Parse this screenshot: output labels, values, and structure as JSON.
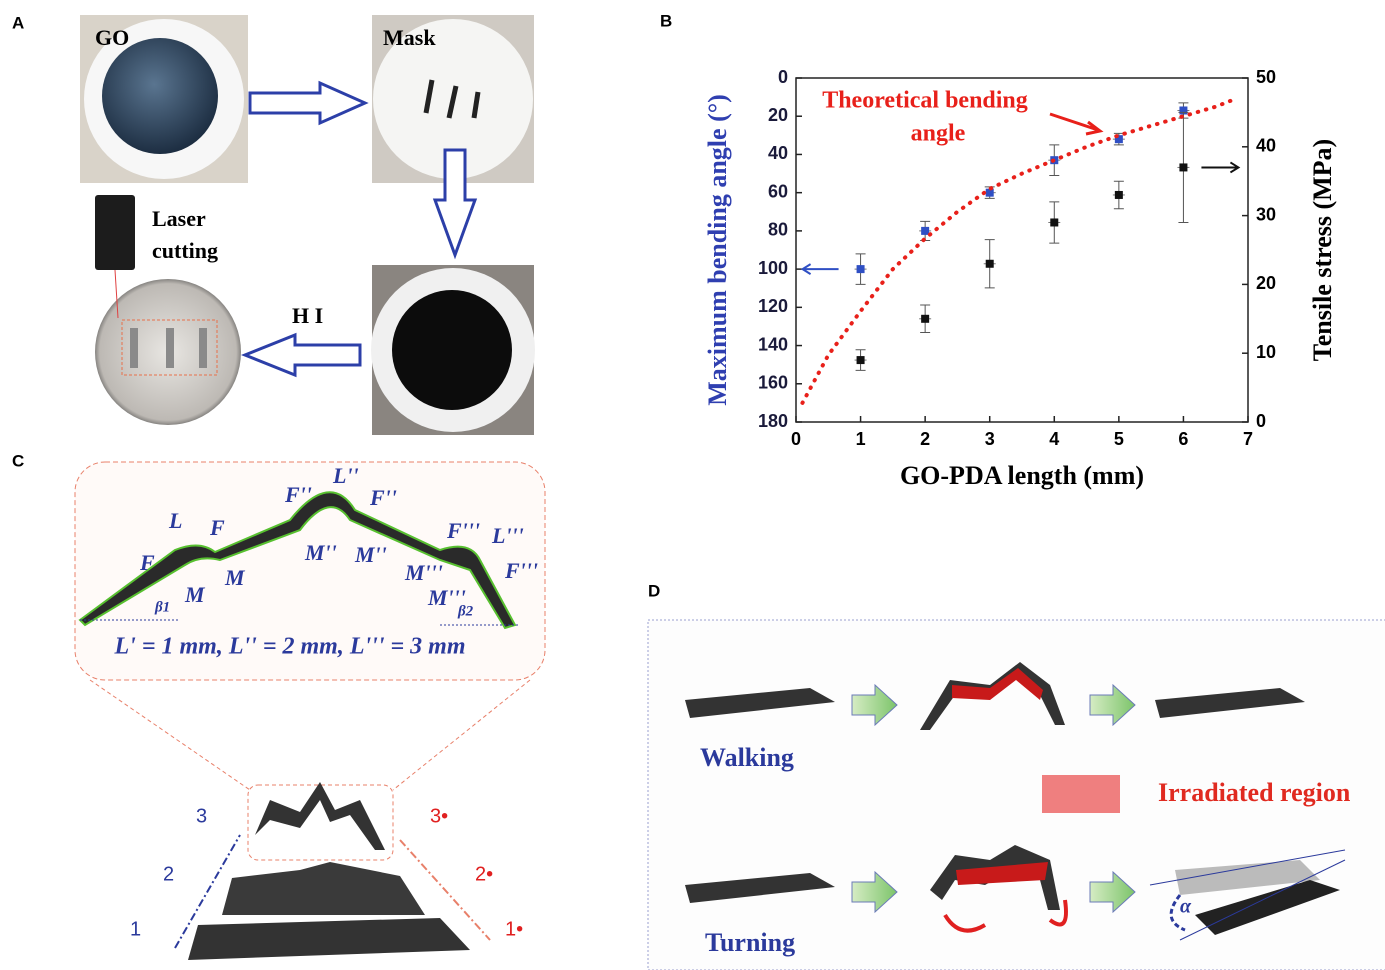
{
  "panels": {
    "a": {
      "letter": "A",
      "go": "GO",
      "mask": "Mask",
      "laser": [
        "Laser",
        "cutting"
      ],
      "hi": "H I"
    },
    "b": {
      "letter": "B"
    },
    "c": {
      "letter": "C",
      "labels": [
        "L",
        "F",
        "F",
        "M",
        "M",
        "F''",
        "L''",
        "F''",
        "M''",
        "M''",
        "F'''",
        "L'''",
        "M'''",
        "M'''",
        "F'''",
        "β1",
        "β2"
      ],
      "lengths": "L' = 1 mm,  L'' = 2 mm,  L''' = 3 mm",
      "steps": [
        "1",
        "2",
        "3"
      ],
      "steps_red": [
        "1•",
        "2•",
        "3•"
      ]
    },
    "d": {
      "letter": "D",
      "walking": "Walking",
      "turning": "Turning",
      "legend": "Irradiated region",
      "alpha": "α"
    }
  },
  "chart_data": {
    "type": "scatter",
    "x_label": "GO-PDA length (mm)",
    "y_label": "Maximum bending angle (°)",
    "y2_label": "Tensile stress (MPa)",
    "annotation": [
      "Theoretical bending",
      "angle"
    ],
    "xlim": [
      0,
      7
    ],
    "xticks": [
      0,
      1,
      2,
      3,
      4,
      5,
      6,
      7
    ],
    "ylim": [
      180,
      0
    ],
    "yticks": [
      0,
      20,
      40,
      60,
      80,
      100,
      120,
      140,
      160,
      180
    ],
    "y2lim": [
      0,
      50
    ],
    "y2ticks": [
      0,
      10,
      20,
      30,
      40,
      50
    ],
    "series": [
      {
        "color": "#2f4fc4",
        "x": [
          1,
          2,
          3,
          4,
          5,
          6
        ],
        "values": [
          100,
          80,
          60,
          43,
          32,
          17
        ],
        "errors": [
          8,
          5,
          3,
          8,
          3,
          4
        ]
      },
      {
        "color": "#111111",
        "axis": "y2",
        "x": [
          1,
          2,
          3,
          4,
          5,
          6
        ],
        "values": [
          9,
          15,
          23,
          29,
          33,
          37
        ],
        "errors": [
          1.5,
          2,
          3.5,
          3,
          2,
          8
        ]
      },
      {
        "color": "#e8201a",
        "style": "dotted",
        "x": [
          0.1,
          0.5,
          1,
          1.5,
          2,
          2.5,
          3,
          3.5,
          4,
          4.5,
          5,
          5.5,
          6,
          6.5,
          6.8
        ],
        "values": [
          170,
          145,
          122,
          100,
          84,
          70,
          58,
          50,
          43,
          36,
          30,
          25,
          20,
          15,
          11
        ]
      }
    ]
  }
}
